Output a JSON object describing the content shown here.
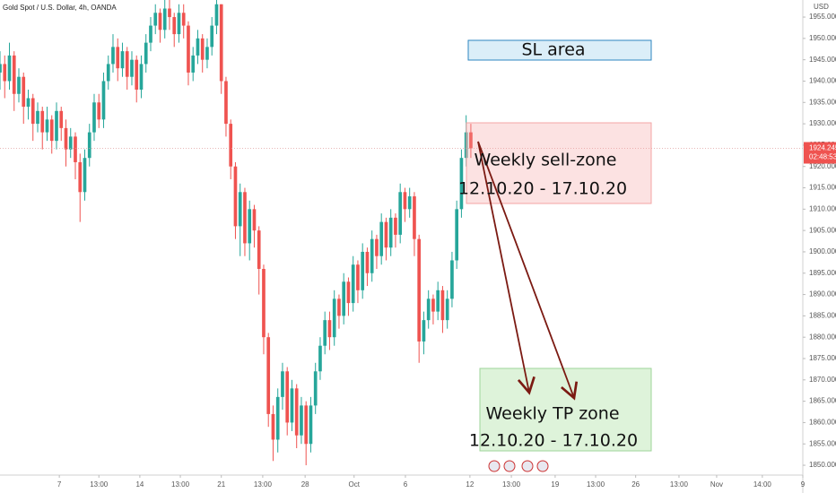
{
  "chart_data": {
    "type": "candlestick",
    "title": "Gold Spot / U.S. Dollar, 4h, OANDA",
    "currency": "USD",
    "countdown": "02:48:53",
    "up_color": "#26a69a",
    "down_color": "#ef5350",
    "x": [
      0,
      1,
      2,
      3,
      4,
      5,
      6,
      7,
      8,
      9,
      10,
      11,
      12,
      13,
      14,
      15,
      16,
      17,
      18,
      19,
      20,
      21,
      22,
      23,
      24,
      25,
      26,
      27,
      28,
      29,
      30,
      31,
      32,
      33,
      34,
      35,
      36,
      37,
      38,
      39,
      40,
      41,
      42,
      43,
      44,
      45,
      46,
      47,
      48,
      49,
      50,
      51,
      52,
      53,
      54,
      55,
      56,
      57,
      58,
      59,
      60,
      61,
      62,
      63,
      64,
      65,
      66,
      67,
      68,
      69,
      70,
      71,
      72,
      73,
      74,
      75,
      76,
      77,
      78,
      79,
      80,
      81,
      82,
      83,
      84,
      85,
      86,
      87,
      88,
      89,
      90,
      91,
      92,
      93,
      94,
      95,
      96,
      97,
      98,
      99,
      100
    ],
    "open": [
      1942,
      1944,
      1940,
      1946,
      1937,
      1941,
      1934,
      1936,
      1930,
      1933,
      1928,
      1931,
      1926,
      1933,
      1929,
      1924,
      1927,
      1921,
      1914,
      1922,
      1928,
      1935,
      1931,
      1940,
      1944,
      1948,
      1943,
      1947,
      1941,
      1945,
      1938,
      1944,
      1949,
      1953,
      1956,
      1952,
      1957,
      1955,
      1951,
      1956,
      1953,
      1942,
      1946,
      1950,
      1945,
      1948,
      1953,
      1958,
      1940,
      1930,
      1920,
      1906,
      1914,
      1902,
      1910,
      1905,
      1896,
      1880,
      1862,
      1856,
      1866,
      1872,
      1860,
      1868,
      1857,
      1864,
      1855,
      1864,
      1872,
      1878,
      1884,
      1880,
      1889,
      1885,
      1893,
      1888,
      1897,
      1891,
      1900,
      1895,
      1903,
      1899,
      1907,
      1901,
      1908,
      1904,
      1914,
      1910,
      1913,
      1903,
      1879,
      1884,
      1889,
      1886,
      1891,
      1884,
      1889,
      1898,
      1910,
      1922,
      1928
    ],
    "high": [
      1947,
      1946,
      1949,
      1947,
      1943,
      1942,
      1938,
      1937,
      1935,
      1934,
      1934,
      1932,
      1935,
      1934,
      1931,
      1929,
      1928,
      1923,
      1924,
      1930,
      1937,
      1937,
      1942,
      1946,
      1951,
      1950,
      1949,
      1948,
      1947,
      1946,
      1946,
      1951,
      1955,
      1958,
      1957,
      1959,
      1959,
      1956,
      1958,
      1958,
      1954,
      1948,
      1952,
      1951,
      1950,
      1955,
      1959,
      1958,
      1941,
      1931,
      1921,
      1916,
      1915,
      1912,
      1911,
      1906,
      1897,
      1881,
      1864,
      1868,
      1874,
      1873,
      1870,
      1869,
      1866,
      1865,
      1866,
      1874,
      1880,
      1886,
      1886,
      1891,
      1890,
      1895,
      1894,
      1899,
      1898,
      1902,
      1901,
      1905,
      1904,
      1909,
      1908,
      1910,
      1909,
      1916,
      1915,
      1915,
      1914,
      1904,
      1886,
      1891,
      1890,
      1893,
      1892,
      1891,
      1900,
      1912,
      1924,
      1932,
      1930
    ],
    "low": [
      1938,
      1936,
      1938,
      1933,
      1935,
      1930,
      1931,
      1926,
      1928,
      1924,
      1926,
      1923,
      1924,
      1926,
      1920,
      1922,
      1917,
      1907,
      1912,
      1920,
      1926,
      1929,
      1929,
      1938,
      1942,
      1940,
      1941,
      1938,
      1939,
      1935,
      1936,
      1942,
      1947,
      1951,
      1949,
      1950,
      1952,
      1948,
      1949,
      1950,
      1939,
      1940,
      1944,
      1942,
      1943,
      1946,
      1951,
      1937,
      1927,
      1917,
      1903,
      1899,
      1899,
      1898,
      1901,
      1890,
      1876,
      1859,
      1851,
      1853,
      1863,
      1857,
      1858,
      1854,
      1855,
      1850,
      1853,
      1862,
      1870,
      1876,
      1877,
      1878,
      1882,
      1883,
      1885,
      1886,
      1888,
      1889,
      1892,
      1893,
      1896,
      1897,
      1898,
      1899,
      1901,
      1902,
      1907,
      1908,
      1899,
      1874,
      1876,
      1882,
      1883,
      1884,
      1881,
      1882,
      1887,
      1896,
      1908,
      1920,
      1922
    ],
    "close": [
      1944,
      1940,
      1946,
      1937,
      1941,
      1934,
      1936,
      1930,
      1933,
      1928,
      1931,
      1926,
      1933,
      1929,
      1924,
      1927,
      1921,
      1914,
      1922,
      1928,
      1935,
      1931,
      1940,
      1944,
      1948,
      1943,
      1947,
      1941,
      1945,
      1938,
      1944,
      1949,
      1953,
      1956,
      1952,
      1957,
      1955,
      1951,
      1956,
      1953,
      1942,
      1946,
      1950,
      1945,
      1948,
      1953,
      1958,
      1940,
      1930,
      1920,
      1906,
      1914,
      1902,
      1910,
      1905,
      1896,
      1880,
      1862,
      1856,
      1866,
      1872,
      1860,
      1868,
      1857,
      1864,
      1855,
      1864,
      1872,
      1878,
      1884,
      1880,
      1889,
      1885,
      1893,
      1888,
      1897,
      1891,
      1900,
      1895,
      1903,
      1899,
      1907,
      1901,
      1908,
      1904,
      1914,
      1910,
      1913,
      1903,
      1879,
      1884,
      1889,
      1886,
      1891,
      1884,
      1889,
      1898,
      1910,
      1922,
      1928,
      1924.245
    ],
    "xlim": [
      0,
      170.5
    ],
    "ylim": [
      1847.7,
      1959
    ],
    "xticks": [
      {
        "value": 12.6,
        "label": "7"
      },
      {
        "value": 21,
        "label": "13:00"
      },
      {
        "value": 29.7,
        "label": "14"
      },
      {
        "value": 38.3,
        "label": "13:00"
      },
      {
        "value": 47,
        "label": "21"
      },
      {
        "value": 55.8,
        "label": "13:00"
      },
      {
        "value": 64.8,
        "label": "28"
      },
      {
        "value": 75.2,
        "label": "Oct"
      },
      {
        "value": 86.1,
        "label": "6"
      },
      {
        "value": 99.8,
        "label": "12"
      },
      {
        "value": 108.6,
        "label": "13:00"
      },
      {
        "value": 117.9,
        "label": "19"
      },
      {
        "value": 126.5,
        "label": "13:00"
      },
      {
        "value": 135,
        "label": "26"
      },
      {
        "value": 144.2,
        "label": "13:00"
      },
      {
        "value": 152.2,
        "label": "Nov"
      },
      {
        "value": 161.9,
        "label": "14:00"
      },
      {
        "value": 170.5,
        "label": "9"
      }
    ],
    "yticks": [
      {
        "value": 1850,
        "label": "1850.000"
      },
      {
        "value": 1855,
        "label": "1855.000"
      },
      {
        "value": 1860,
        "label": "1860.000"
      },
      {
        "value": 1865,
        "label": "1865.000"
      },
      {
        "value": 1870,
        "label": "1870.000"
      },
      {
        "value": 1875,
        "label": "1875.000"
      },
      {
        "value": 1880,
        "label": "1880.000"
      },
      {
        "value": 1885,
        "label": "1885.000"
      },
      {
        "value": 1890,
        "label": "1890.000"
      },
      {
        "value": 1895,
        "label": "1895.000"
      },
      {
        "value": 1900,
        "label": "1900.000"
      },
      {
        "value": 1905,
        "label": "1905.000"
      },
      {
        "value": 1910,
        "label": "1910.000"
      },
      {
        "value": 1915,
        "label": "1915.000"
      },
      {
        "value": 1920,
        "label": "1920.000"
      },
      {
        "value": 1925,
        "label": "1925.000"
      },
      {
        "value": 1930,
        "label": "1930.000"
      },
      {
        "value": 1935,
        "label": "1935.000"
      },
      {
        "value": 1940,
        "label": "1940.000"
      },
      {
        "value": 1945,
        "label": "1945.000"
      },
      {
        "value": 1950,
        "label": "1950.000"
      },
      {
        "value": 1955,
        "label": "1955.000"
      }
    ],
    "annotations": {
      "sl_area": "SL area",
      "sell_zone": "Weekly sell-zone",
      "sell_dates": "12.10.20 - 17.10.20",
      "tp_zone": "Weekly TP zone",
      "tp_dates": "12.10.20 - 17.10.20"
    }
  }
}
